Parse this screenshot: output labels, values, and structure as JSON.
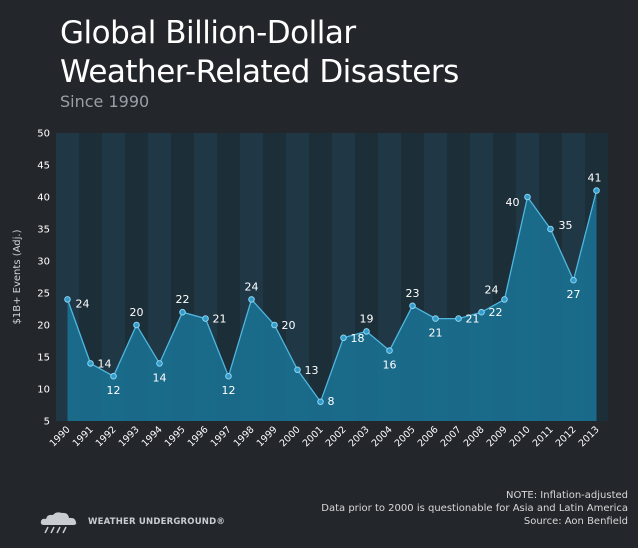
{
  "header": {
    "title_line1": "Global Billion-Dollar",
    "title_line2": "Weather-Related Disasters",
    "subtitle": "Since 1990"
  },
  "notes": {
    "line1": "NOTE: Inflation-adjusted",
    "line2": "Data prior to 2000 is questionable for Asia and Latin America",
    "line3": "Source: Aon Benfield"
  },
  "logo": {
    "text": "WEATHER UNDERGROUND®",
    "icon": "cloud-rain-icon"
  },
  "colors": {
    "background": "#23262b",
    "band_dark": "#1c2e38",
    "band_light": "#203845",
    "area_fill": "#1a7396",
    "line": "#4fb6df",
    "marker": "#2f9ccc",
    "text": "#ffffff"
  },
  "chart_data": {
    "type": "area",
    "title": "Global Billion-Dollar Weather-Related Disasters",
    "subtitle": "Since 1990",
    "ylabel": "$1B+ Events (Adj.)",
    "ylim": [
      5,
      50
    ],
    "yticks": [
      5,
      10,
      15,
      20,
      25,
      30,
      35,
      40,
      45,
      50
    ],
    "x": [
      "1990",
      "1991",
      "1992",
      "1993",
      "1994",
      "1995",
      "1996",
      "1997",
      "1998",
      "1999",
      "2000",
      "2001",
      "2002",
      "2003",
      "2004",
      "2005",
      "2006",
      "2007",
      "2008",
      "2009",
      "2010",
      "2011",
      "2012",
      "2013"
    ],
    "values": [
      24,
      14,
      12,
      20,
      14,
      22,
      21,
      12,
      24,
      20,
      13,
      8,
      18,
      19,
      16,
      23,
      21,
      21,
      22,
      24,
      40,
      35,
      27,
      41
    ],
    "grid": false,
    "alternating_bands": true
  }
}
